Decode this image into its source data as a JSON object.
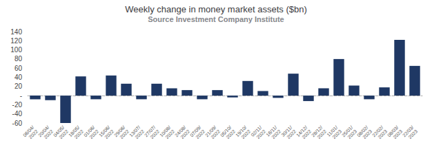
{
  "chart_data": {
    "type": "bar",
    "title": "Weekly change in money market assets ($bn)",
    "subtitle": "Source Investment Company Institute",
    "categories": [
      "06/04/\n2022",
      "20/04/\n2022",
      "04/05/\n2022",
      "18/05/\n2022",
      "01/06/\n2022",
      "15/06/\n2022",
      "29/06/\n2022",
      "13/07/\n2022",
      "27/07/\n2022",
      "10/08/\n2022",
      "24/08/\n2022",
      "07/09/\n2022",
      "21/09/\n2022",
      "05/10/\n2022",
      "19/10/\n2022",
      "02/11/\n2022",
      "16/11/\n2022",
      "30/11/\n2022",
      "14/12/\n2022",
      "28/12/\n2022",
      "11/01/\n2023",
      "25/01/\n2023",
      "08/02/\n2023",
      "22/02/\n2023",
      "08/03/\n2023",
      "22/03/\n2023"
    ],
    "values": [
      -8,
      -10,
      -60,
      42,
      -8,
      44,
      26,
      -8,
      26,
      16,
      12,
      -8,
      12,
      -4,
      32,
      10,
      -5,
      48,
      -12,
      16,
      80,
      22,
      -8,
      18,
      122,
      65
    ],
    "color": "#1F3864",
    "ylim": [
      -60,
      140
    ],
    "yticks": [
      -60,
      -40,
      -20,
      {
        "value": 0,
        "label": "-"
      },
      20,
      40,
      60,
      80,
      100,
      120,
      140
    ],
    "grid": false
  }
}
